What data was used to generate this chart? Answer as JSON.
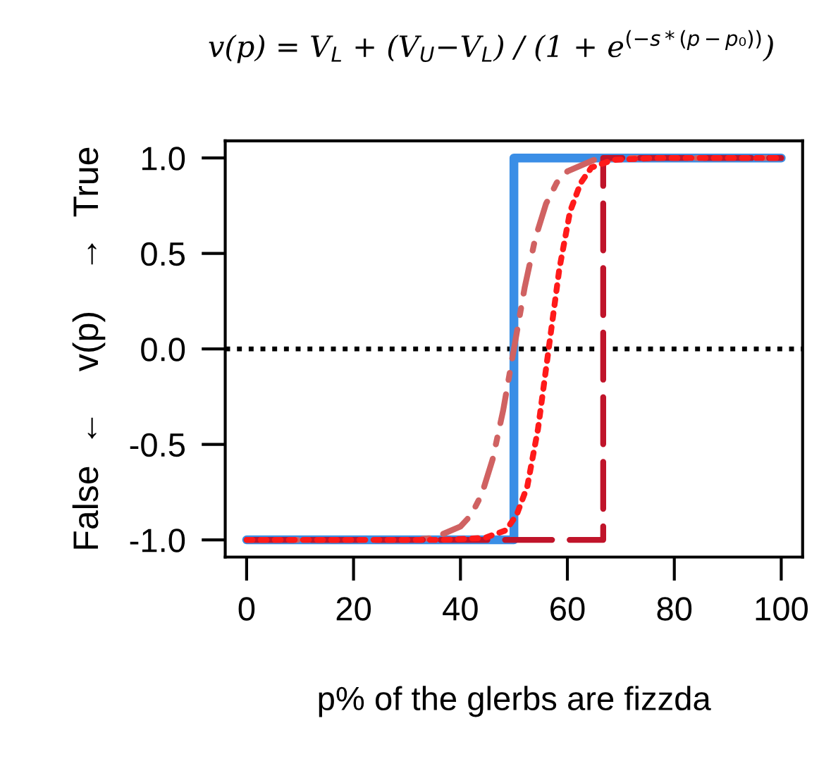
{
  "chart_data": {
    "type": "line",
    "title": "v(p) = V$_{L}$ + (V$_{U}$−V$_{L}$) / (1 + e$^{(−s*(p−p₀))}$)",
    "xlabel": "p% of the glerbs are fizzda",
    "ylabel": "False  ←    v(p)    →  True",
    "xlim": [
      -4,
      104
    ],
    "xticks": [
      0,
      20,
      40,
      60,
      80,
      100
    ],
    "ylim": [
      -1.09,
      1.09
    ],
    "yticks": [
      {
        "value": -1,
        "label": "-1.0"
      },
      -0.5,
      {
        "value": 0,
        "label": "0.0"
      },
      0.5,
      {
        "value": 1,
        "label": "1.0"
      }
    ],
    "grid": false,
    "legend": false,
    "ref_lines": [
      {
        "axis": "y",
        "value": 0,
        "color": "#000000",
        "line_style": "dotted"
      }
    ],
    "series": [
      {
        "color": "#3a8ee6",
        "line_style": "solid",
        "x": [
          0,
          50,
          50,
          100
        ],
        "values": [
          -1,
          -1,
          1,
          1
        ]
      },
      {
        "color": "#d06262",
        "line_style": "dashdot",
        "x": [
          0,
          30,
          35,
          40,
          42,
          44,
          46,
          48,
          50,
          52,
          54,
          56,
          58,
          60,
          65,
          70,
          100
        ],
        "values": [
          -1,
          -1.0,
          -0.99,
          -0.93,
          -0.87,
          -0.76,
          -0.58,
          -0.32,
          0,
          0.32,
          0.58,
          0.76,
          0.87,
          0.93,
          0.99,
          1.0,
          1
        ]
      },
      {
        "color": "#ff1a1a",
        "line_style": "dotted",
        "x": [
          0,
          36.5,
          44.5,
          48.5,
          50.5,
          52.5,
          54.5,
          56.5,
          58.5,
          60.5,
          62.5,
          64.5,
          68.5,
          76.5,
          100
        ],
        "values": [
          -1,
          -1.0,
          -0.99,
          -0.95,
          -0.87,
          -0.72,
          -0.42,
          0,
          0.42,
          0.72,
          0.87,
          0.95,
          0.99,
          1.0,
          1
        ]
      },
      {
        "color": "#c0142a",
        "line_style": "dashed",
        "x": [
          0,
          66.7,
          66.7,
          100
        ],
        "values": [
          -1,
          -1,
          1,
          1
        ]
      }
    ]
  }
}
